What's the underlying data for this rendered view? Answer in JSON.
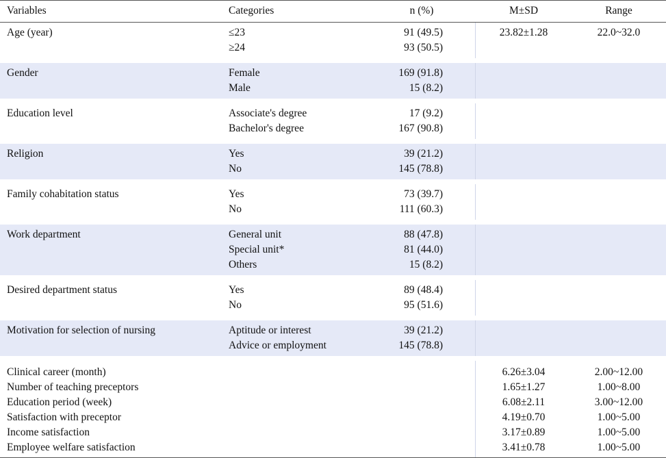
{
  "header": {
    "variables": "Variables",
    "categories": "Categories",
    "n_pct": "n (%)",
    "msd": "M±SD",
    "range": "Range"
  },
  "groups": [
    {
      "variable": "Age (year)",
      "shaded": false,
      "rows": [
        {
          "category": "≤23",
          "n": "91 (49.5)",
          "msd": "23.82±1.28",
          "range": "22.0~32.0"
        },
        {
          "category": "≥24",
          "n": "93 (50.5)",
          "msd": "",
          "range": ""
        }
      ]
    },
    {
      "variable": "Gender",
      "shaded": true,
      "rows": [
        {
          "category": "Female",
          "n": "169 (91.8)",
          "msd": "",
          "range": ""
        },
        {
          "category": "Male",
          "n": "15 (8.2)",
          "msd": "",
          "range": ""
        }
      ]
    },
    {
      "variable": "Education level",
      "shaded": false,
      "rows": [
        {
          "category": "Associate's degree",
          "n": "17 (9.2)",
          "msd": "",
          "range": ""
        },
        {
          "category": "Bachelor's degree",
          "n": "167 (90.8)",
          "msd": "",
          "range": ""
        }
      ]
    },
    {
      "variable": "Religion",
      "shaded": true,
      "rows": [
        {
          "category": "Yes",
          "n": "39 (21.2)",
          "msd": "",
          "range": ""
        },
        {
          "category": "No",
          "n": "145 (78.8)",
          "msd": "",
          "range": ""
        }
      ]
    },
    {
      "variable": "Family cohabitation status",
      "shaded": false,
      "rows": [
        {
          "category": "Yes",
          "n": "73 (39.7)",
          "msd": "",
          "range": ""
        },
        {
          "category": "No",
          "n": "111 (60.3)",
          "msd": "",
          "range": ""
        }
      ]
    },
    {
      "variable": "Work department",
      "shaded": true,
      "rows": [
        {
          "category": "General unit",
          "n": "88 (47.8)",
          "msd": "",
          "range": ""
        },
        {
          "category": "Special unit*",
          "n": "81 (44.0)",
          "msd": "",
          "range": ""
        },
        {
          "category": "Others",
          "n": "15 (8.2)",
          "msd": "",
          "range": ""
        }
      ]
    },
    {
      "variable": "Desired department status",
      "shaded": false,
      "rows": [
        {
          "category": "Yes",
          "n": "89 (48.4)",
          "msd": "",
          "range": ""
        },
        {
          "category": "No",
          "n": "95 (51.6)",
          "msd": "",
          "range": ""
        }
      ]
    },
    {
      "variable": "Motivation for selection of nursing",
      "shaded": true,
      "rows": [
        {
          "category": "Aptitude or interest",
          "n": "39 (21.2)",
          "msd": "",
          "range": ""
        },
        {
          "category": "Advice or employment",
          "n": "145 (78.8)",
          "msd": "",
          "range": ""
        }
      ]
    }
  ],
  "continuous": [
    {
      "variable": "Clinical career (month)",
      "msd": "6.26±3.04",
      "range": "2.00~12.00"
    },
    {
      "variable": "Number of teaching preceptors",
      "msd": "1.65±1.27",
      "range": "1.00~8.00"
    },
    {
      "variable": "Education period (week)",
      "msd": "6.08±2.11",
      "range": "3.00~12.00"
    },
    {
      "variable": "Satisfaction with preceptor",
      "msd": "4.19±0.70",
      "range": "1.00~5.00"
    },
    {
      "variable": "Income satisfaction",
      "msd": "3.17±0.89",
      "range": "1.00~5.00"
    },
    {
      "variable": "Employee welfare satisfaction",
      "msd": "3.41±0.78",
      "range": "1.00~5.00"
    }
  ]
}
